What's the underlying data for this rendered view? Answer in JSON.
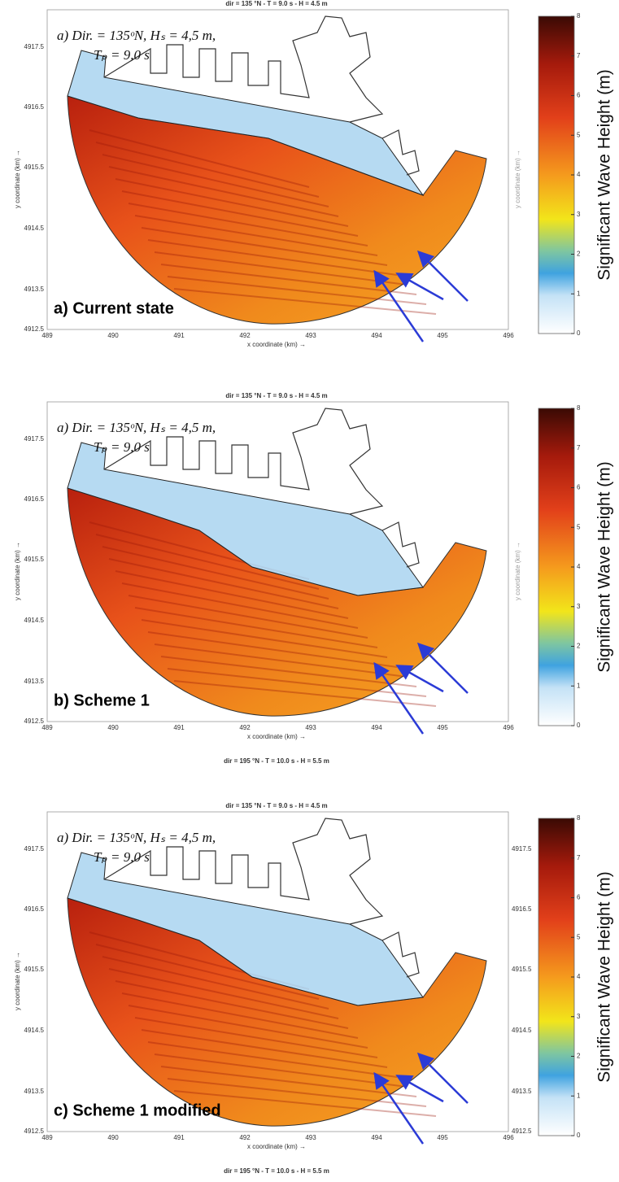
{
  "panels": [
    {
      "title": "dir = 135 °N - T =  9.0 s - H = 4.5 m",
      "annotation": [
        "a) Dir. = 135ᵒN, Hₛ = 4,5 m,",
        "Tₚ = 9,0 s"
      ],
      "label": "a) Current state",
      "x_label": "x coordinate (km) →",
      "y_label": "y coordinate (km) →",
      "right_y_label": "y coordinate (km) →",
      "x_ticks": [
        489,
        490,
        491,
        492,
        493,
        494,
        495,
        496
      ],
      "y_ticks": [
        4917.5,
        4916.5,
        4915.5,
        4914.5,
        4913.5,
        4912.5
      ],
      "colorbar": {
        "label": "Significant Wave Height (m)",
        "ticks": [
          0,
          1,
          2,
          3,
          4,
          5,
          6,
          7,
          8
        ]
      }
    },
    {
      "title": "dir = 135 °N - T =  9.0 s - H = 4.5 m",
      "annotation": [
        "a) Dir. = 135ᵒN, Hₛ = 4,5 m,",
        "Tₚ = 9,0 s"
      ],
      "label": "b) Scheme 1",
      "x_label": "x coordinate (km) →",
      "y_label": "y coordinate (km) →",
      "right_y_label": "y coordinate (km) →",
      "x_ticks": [
        489,
        490,
        491,
        492,
        493,
        494,
        495,
        496
      ],
      "y_ticks": [
        4917.5,
        4916.5,
        4915.5,
        4914.5,
        4913.5,
        4912.5
      ],
      "colorbar": {
        "label": "Significant Wave Height (m)",
        "ticks": [
          0,
          1,
          2,
          3,
          4,
          5,
          6,
          7,
          8
        ]
      },
      "footer": "dir = 195 °N - T =  10.0 s - H = 5.5 m"
    },
    {
      "title": "dir = 135 °N - T =  9.0 s - H = 4.5 m",
      "annotation": [
        "a) Dir. = 135ᵒN, Hₛ = 4,5 m,",
        "Tₚ = 9,0 s"
      ],
      "label": "c) Scheme 1  modified",
      "x_label": "x coordinate (km) →",
      "y_label": "y coordinate (km) →",
      "x_ticks": [
        489,
        490,
        491,
        492,
        493,
        494,
        495,
        496
      ],
      "y_ticks": [
        4917.5,
        4916.5,
        4915.5,
        4914.5,
        4913.5,
        4912.5
      ],
      "right_y_ticks": [
        4917.5,
        4916.5,
        4915.5,
        4914.5,
        4913.5,
        4912.5
      ],
      "colorbar": {
        "label": "Significant Wave Height (m)",
        "ticks": [
          0,
          1,
          2,
          3,
          4,
          5,
          6,
          7,
          8
        ]
      },
      "footer": "dir = 195 °N - T =  10.0 s - H = 5.5 m"
    }
  ]
}
